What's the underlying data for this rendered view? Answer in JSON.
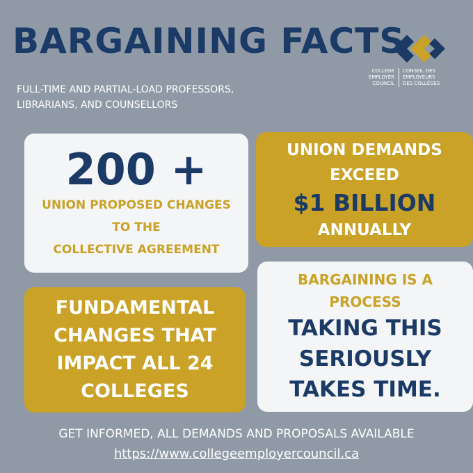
{
  "header": {
    "title": "BARGAINING FACTS",
    "subtitle_lines": [
      "FULL-TIME AND PARTIAL-LOAD PROFESSORS,",
      "LIBRARIANS, AND COUNSELLORS"
    ]
  },
  "logo": {
    "left_lines": [
      "COLLEGE",
      "EMPLOYER",
      "COUNCIL"
    ],
    "right_lines": [
      "CONSEIL DES",
      "EMPLOYEURS",
      "DES COLLÈGES"
    ]
  },
  "cards": [
    {
      "big": "200 +",
      "lines": [
        "UNION PROPOSED CHANGES",
        "TO THE",
        "COLLECTIVE AGREEMENT"
      ]
    },
    {
      "lines": [
        "UNION DEMANDS",
        "EXCEED"
      ],
      "big": "$1 BILLION",
      "after": "ANNUALLY"
    },
    {
      "lines": [
        "FUNDAMENTAL",
        "CHANGES THAT",
        "IMPACT ALL 24",
        "COLLEGES"
      ]
    },
    {
      "lines": [
        "BARGAINING IS A",
        "PROCESS"
      ],
      "big_lines": [
        "TAKING THIS",
        "SERIOUSLY",
        "TAKES TIME."
      ]
    }
  ],
  "footer": {
    "text": "GET INFORMED, ALL DEMANDS AND PROPOSALS AVAILABLE",
    "link": "https://www.collegeemployercouncil.ca"
  }
}
